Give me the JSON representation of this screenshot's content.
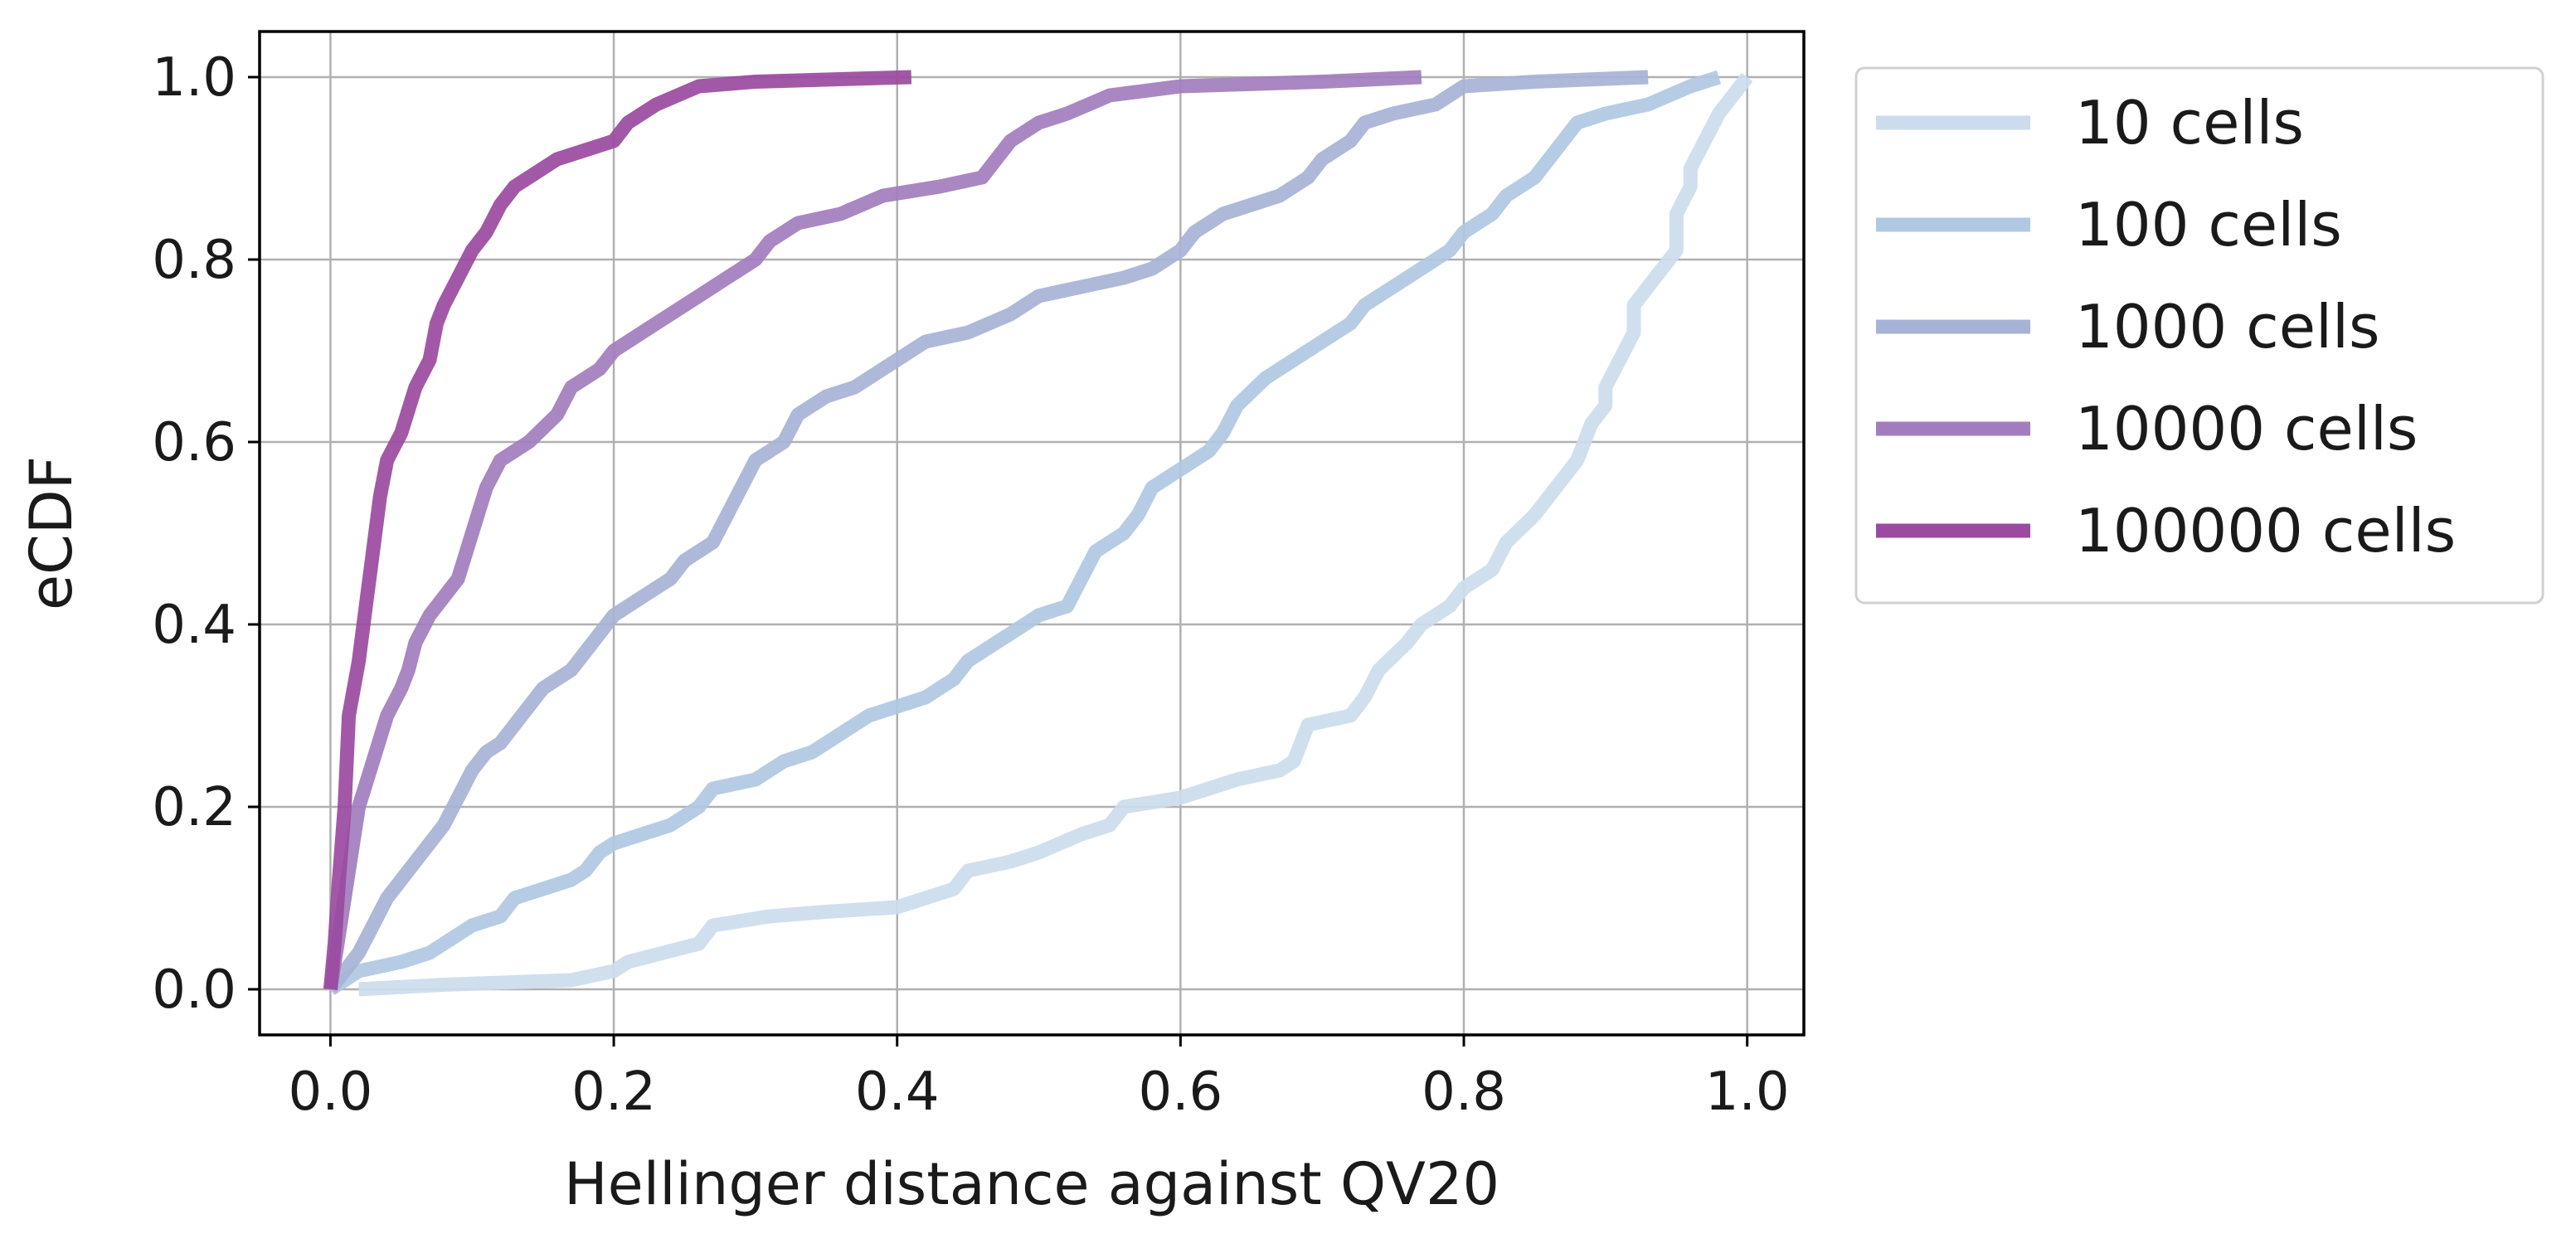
{
  "chart_data": {
    "type": "line",
    "title": "",
    "xlabel": "Hellinger distance against QV20",
    "ylabel": "eCDF",
    "xlim": [
      -0.05,
      1.04
    ],
    "ylim": [
      -0.05,
      1.05
    ],
    "grid": true,
    "legend_position": "outside-right-top",
    "x_ticks": [
      "0.0",
      "0.2",
      "0.4",
      "0.6",
      "0.8",
      "1.0"
    ],
    "y_ticks": [
      "0.0",
      "0.2",
      "0.4",
      "0.6",
      "0.8",
      "1.0"
    ],
    "series": [
      {
        "name": "10 cells",
        "color": "#ccdcec",
        "points": [
          [
            0.02,
            0.0
          ],
          [
            0.08,
            0.005
          ],
          [
            0.17,
            0.01
          ],
          [
            0.2,
            0.02
          ],
          [
            0.21,
            0.03
          ],
          [
            0.26,
            0.05
          ],
          [
            0.27,
            0.07
          ],
          [
            0.31,
            0.08
          ],
          [
            0.35,
            0.085
          ],
          [
            0.4,
            0.09
          ],
          [
            0.42,
            0.1
          ],
          [
            0.44,
            0.11
          ],
          [
            0.45,
            0.13
          ],
          [
            0.48,
            0.14
          ],
          [
            0.5,
            0.15
          ],
          [
            0.53,
            0.17
          ],
          [
            0.55,
            0.18
          ],
          [
            0.56,
            0.2
          ],
          [
            0.6,
            0.21
          ],
          [
            0.64,
            0.23
          ],
          [
            0.67,
            0.24
          ],
          [
            0.68,
            0.25
          ],
          [
            0.69,
            0.29
          ],
          [
            0.72,
            0.3
          ],
          [
            0.73,
            0.32
          ],
          [
            0.74,
            0.35
          ],
          [
            0.76,
            0.38
          ],
          [
            0.77,
            0.4
          ],
          [
            0.79,
            0.42
          ],
          [
            0.8,
            0.44
          ],
          [
            0.82,
            0.46
          ],
          [
            0.83,
            0.49
          ],
          [
            0.85,
            0.52
          ],
          [
            0.86,
            0.54
          ],
          [
            0.87,
            0.56
          ],
          [
            0.88,
            0.58
          ],
          [
            0.89,
            0.62
          ],
          [
            0.9,
            0.64
          ],
          [
            0.9,
            0.66
          ],
          [
            0.91,
            0.69
          ],
          [
            0.92,
            0.72
          ],
          [
            0.92,
            0.75
          ],
          [
            0.93,
            0.77
          ],
          [
            0.94,
            0.79
          ],
          [
            0.95,
            0.81
          ],
          [
            0.95,
            0.85
          ],
          [
            0.96,
            0.88
          ],
          [
            0.96,
            0.9
          ],
          [
            0.97,
            0.93
          ],
          [
            0.98,
            0.96
          ],
          [
            0.99,
            0.98
          ],
          [
            1.0,
            1.0
          ]
        ]
      },
      {
        "name": "100 cells",
        "color": "#b0c8e2",
        "points": [
          [
            0.0,
            0.0
          ],
          [
            0.02,
            0.02
          ],
          [
            0.05,
            0.03
          ],
          [
            0.07,
            0.04
          ],
          [
            0.09,
            0.06
          ],
          [
            0.1,
            0.07
          ],
          [
            0.12,
            0.08
          ],
          [
            0.13,
            0.1
          ],
          [
            0.15,
            0.11
          ],
          [
            0.17,
            0.12
          ],
          [
            0.18,
            0.13
          ],
          [
            0.19,
            0.15
          ],
          [
            0.2,
            0.16
          ],
          [
            0.24,
            0.18
          ],
          [
            0.26,
            0.2
          ],
          [
            0.27,
            0.22
          ],
          [
            0.3,
            0.23
          ],
          [
            0.32,
            0.25
          ],
          [
            0.34,
            0.26
          ],
          [
            0.36,
            0.28
          ],
          [
            0.38,
            0.3
          ],
          [
            0.4,
            0.31
          ],
          [
            0.42,
            0.32
          ],
          [
            0.44,
            0.34
          ],
          [
            0.45,
            0.36
          ],
          [
            0.47,
            0.38
          ],
          [
            0.49,
            0.4
          ],
          [
            0.5,
            0.41
          ],
          [
            0.52,
            0.42
          ],
          [
            0.53,
            0.45
          ],
          [
            0.54,
            0.48
          ],
          [
            0.56,
            0.5
          ],
          [
            0.57,
            0.52
          ],
          [
            0.58,
            0.55
          ],
          [
            0.6,
            0.57
          ],
          [
            0.62,
            0.59
          ],
          [
            0.63,
            0.61
          ],
          [
            0.64,
            0.64
          ],
          [
            0.66,
            0.67
          ],
          [
            0.68,
            0.69
          ],
          [
            0.7,
            0.71
          ],
          [
            0.72,
            0.73
          ],
          [
            0.73,
            0.75
          ],
          [
            0.75,
            0.77
          ],
          [
            0.77,
            0.79
          ],
          [
            0.79,
            0.81
          ],
          [
            0.8,
            0.83
          ],
          [
            0.82,
            0.85
          ],
          [
            0.83,
            0.87
          ],
          [
            0.85,
            0.89
          ],
          [
            0.86,
            0.91
          ],
          [
            0.87,
            0.93
          ],
          [
            0.88,
            0.95
          ],
          [
            0.9,
            0.96
          ],
          [
            0.93,
            0.97
          ],
          [
            0.96,
            0.99
          ],
          [
            0.98,
            1.0
          ]
        ]
      },
      {
        "name": "1000 cells",
        "color": "#a7b3d6",
        "points": [
          [
            0.0,
            0.0
          ],
          [
            0.01,
            0.02
          ],
          [
            0.02,
            0.04
          ],
          [
            0.03,
            0.07
          ],
          [
            0.04,
            0.1
          ],
          [
            0.05,
            0.12
          ],
          [
            0.06,
            0.14
          ],
          [
            0.07,
            0.16
          ],
          [
            0.08,
            0.18
          ],
          [
            0.09,
            0.21
          ],
          [
            0.1,
            0.24
          ],
          [
            0.11,
            0.26
          ],
          [
            0.12,
            0.27
          ],
          [
            0.13,
            0.29
          ],
          [
            0.14,
            0.31
          ],
          [
            0.15,
            0.33
          ],
          [
            0.17,
            0.35
          ],
          [
            0.18,
            0.37
          ],
          [
            0.19,
            0.39
          ],
          [
            0.2,
            0.41
          ],
          [
            0.22,
            0.43
          ],
          [
            0.24,
            0.45
          ],
          [
            0.25,
            0.47
          ],
          [
            0.27,
            0.49
          ],
          [
            0.28,
            0.52
          ],
          [
            0.29,
            0.55
          ],
          [
            0.3,
            0.58
          ],
          [
            0.32,
            0.6
          ],
          [
            0.33,
            0.63
          ],
          [
            0.35,
            0.65
          ],
          [
            0.37,
            0.66
          ],
          [
            0.39,
            0.68
          ],
          [
            0.42,
            0.71
          ],
          [
            0.45,
            0.72
          ],
          [
            0.48,
            0.74
          ],
          [
            0.5,
            0.76
          ],
          [
            0.53,
            0.77
          ],
          [
            0.56,
            0.78
          ],
          [
            0.58,
            0.79
          ],
          [
            0.6,
            0.81
          ],
          [
            0.61,
            0.83
          ],
          [
            0.63,
            0.85
          ],
          [
            0.65,
            0.86
          ],
          [
            0.67,
            0.87
          ],
          [
            0.69,
            0.89
          ],
          [
            0.7,
            0.91
          ],
          [
            0.72,
            0.93
          ],
          [
            0.73,
            0.95
          ],
          [
            0.75,
            0.96
          ],
          [
            0.78,
            0.97
          ],
          [
            0.8,
            0.99
          ],
          [
            0.85,
            0.995
          ],
          [
            0.93,
            1.0
          ]
        ]
      },
      {
        "name": "10000 cells",
        "color": "#a27dbe",
        "points": [
          [
            0.0,
            0.0
          ],
          [
            0.005,
            0.05
          ],
          [
            0.01,
            0.1
          ],
          [
            0.015,
            0.15
          ],
          [
            0.02,
            0.2
          ],
          [
            0.03,
            0.25
          ],
          [
            0.04,
            0.3
          ],
          [
            0.05,
            0.33
          ],
          [
            0.055,
            0.35
          ],
          [
            0.06,
            0.38
          ],
          [
            0.07,
            0.41
          ],
          [
            0.08,
            0.43
          ],
          [
            0.09,
            0.45
          ],
          [
            0.1,
            0.5
          ],
          [
            0.11,
            0.55
          ],
          [
            0.12,
            0.58
          ],
          [
            0.14,
            0.6
          ],
          [
            0.16,
            0.63
          ],
          [
            0.17,
            0.66
          ],
          [
            0.19,
            0.68
          ],
          [
            0.2,
            0.7
          ],
          [
            0.22,
            0.72
          ],
          [
            0.24,
            0.74
          ],
          [
            0.26,
            0.76
          ],
          [
            0.28,
            0.78
          ],
          [
            0.3,
            0.8
          ],
          [
            0.31,
            0.82
          ],
          [
            0.33,
            0.84
          ],
          [
            0.36,
            0.85
          ],
          [
            0.39,
            0.87
          ],
          [
            0.43,
            0.88
          ],
          [
            0.46,
            0.89
          ],
          [
            0.48,
            0.93
          ],
          [
            0.5,
            0.95
          ],
          [
            0.52,
            0.96
          ],
          [
            0.55,
            0.98
          ],
          [
            0.6,
            0.99
          ],
          [
            0.7,
            0.995
          ],
          [
            0.77,
            1.0
          ]
        ]
      },
      {
        "name": "100000 cells",
        "color": "#9a4a9f",
        "points": [
          [
            0.0,
            0.0
          ],
          [
            0.003,
            0.05
          ],
          [
            0.006,
            0.12
          ],
          [
            0.01,
            0.2
          ],
          [
            0.013,
            0.3
          ],
          [
            0.02,
            0.36
          ],
          [
            0.025,
            0.42
          ],
          [
            0.03,
            0.48
          ],
          [
            0.035,
            0.54
          ],
          [
            0.04,
            0.58
          ],
          [
            0.05,
            0.61
          ],
          [
            0.06,
            0.66
          ],
          [
            0.07,
            0.69
          ],
          [
            0.075,
            0.73
          ],
          [
            0.08,
            0.75
          ],
          [
            0.09,
            0.78
          ],
          [
            0.1,
            0.81
          ],
          [
            0.11,
            0.83
          ],
          [
            0.12,
            0.86
          ],
          [
            0.13,
            0.88
          ],
          [
            0.16,
            0.91
          ],
          [
            0.2,
            0.93
          ],
          [
            0.21,
            0.95
          ],
          [
            0.23,
            0.97
          ],
          [
            0.26,
            0.99
          ],
          [
            0.3,
            0.995
          ],
          [
            0.41,
            1.0
          ]
        ]
      }
    ]
  }
}
